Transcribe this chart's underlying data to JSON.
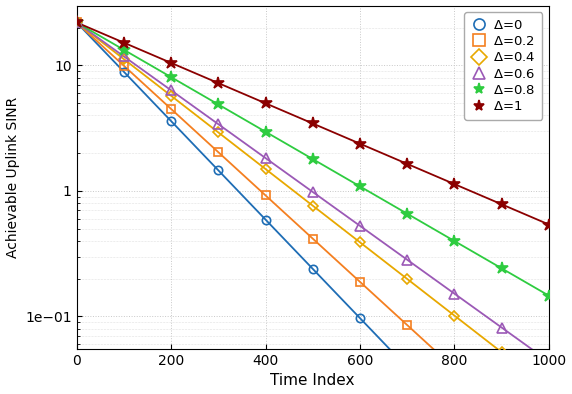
{
  "xlabel": "Time Index",
  "ylabel": "Achievable Uplink SINR",
  "xlim": [
    0,
    1000
  ],
  "ylim_log": [
    0.055,
    30
  ],
  "x_ticks": [
    0,
    200,
    400,
    600,
    800,
    1000
  ],
  "series": [
    {
      "label": "$\\Delta$=0",
      "color": "#1e6db5",
      "marker": "o",
      "markerfacecolor": "none",
      "markersize": 6,
      "rho": 0.991
    },
    {
      "label": "$\\Delta$=0.2",
      "color": "#f47f20",
      "marker": "s",
      "markerfacecolor": "none",
      "markersize": 6,
      "rho": 0.9921
    },
    {
      "label": "$\\Delta$=0.4",
      "color": "#e8a800",
      "marker": "D",
      "markerfacecolor": "none",
      "markersize": 5,
      "rho": 0.9933
    },
    {
      "label": "$\\Delta$=0.6",
      "color": "#9b59b6",
      "marker": "^",
      "markerfacecolor": "none",
      "markersize": 7,
      "rho": 0.9938
    },
    {
      "label": "$\\Delta$=0.8",
      "color": "#2ecc40",
      "marker": "*",
      "markerfacecolor": "#2ecc40",
      "markersize": 9,
      "rho": 0.995
    },
    {
      "label": "$\\Delta$=1",
      "color": "#8b0000",
      "marker": "*",
      "markerfacecolor": "#8b0000",
      "markersize": 9,
      "rho": 0.9963
    }
  ],
  "start_value": 22.0,
  "marker_x": [
    0,
    100,
    200,
    300,
    400,
    500,
    600,
    700,
    800,
    900,
    1000
  ],
  "background_color": "#ffffff",
  "grid_color": "#c8c8c8",
  "linewidth": 1.3
}
